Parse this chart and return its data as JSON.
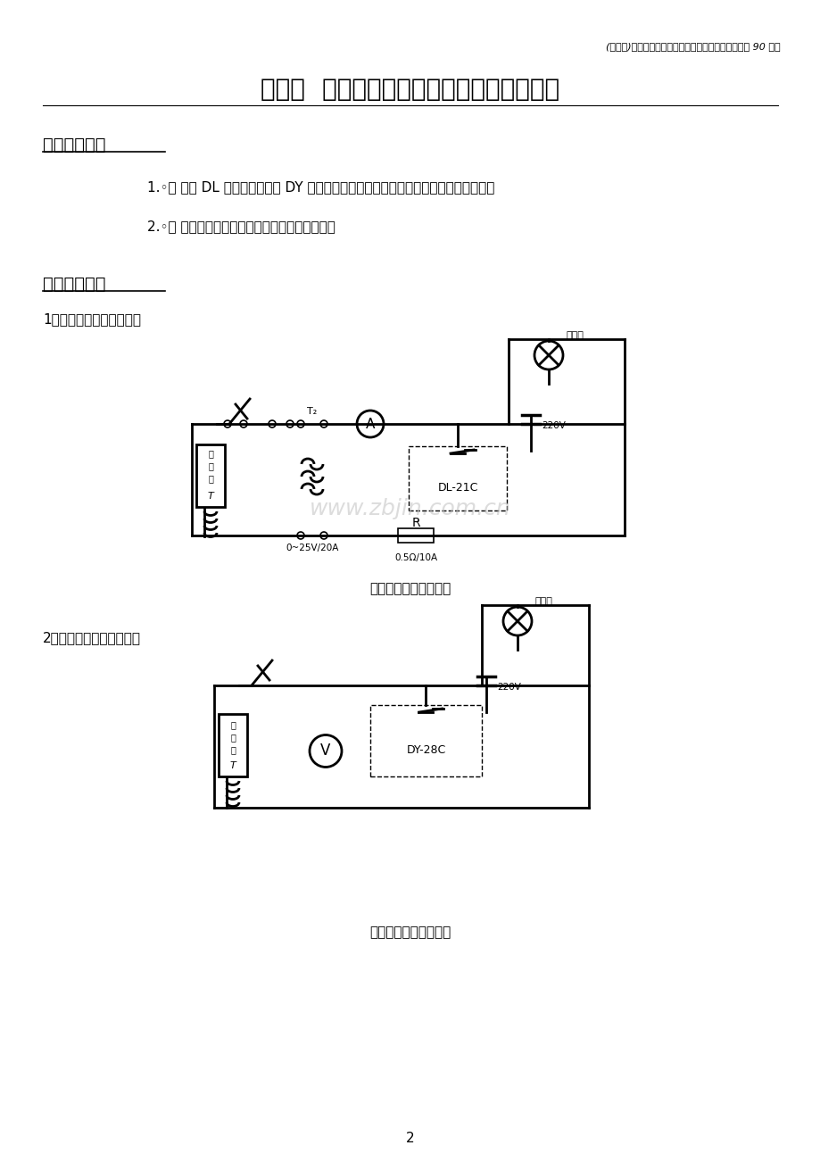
{
  "bg_color": "#ffffff",
  "header_text": "(完整版)大工《电力系统继电保护实验》实验报告完整 90 分版",
  "title": "实验一  电磁型电流继电器和电压继电器实验",
  "section1": "一、实验目的",
  "item1": "1.◦点 熟悉 DL 型电流继电器和 DY 型电压继电器的的实际结构，工作原理、基本特性；",
  "item2": "2.◦点 学习动作电流、动作电压参数的整定方法。",
  "section2": "二、实验电路",
  "subsection1": "1．过流继电器实验接线图",
  "caption1": "过流继电器实验接线图",
  "subsection2": "2。低压继电器实验接线图",
  "caption2": "低压继电器实验接线图",
  "page_num": "2",
  "watermark": "www.zbjin.com.cn",
  "diao": "调",
  "ya": "压",
  "qi": "器",
  "guang_shi_pai": "光示牌"
}
